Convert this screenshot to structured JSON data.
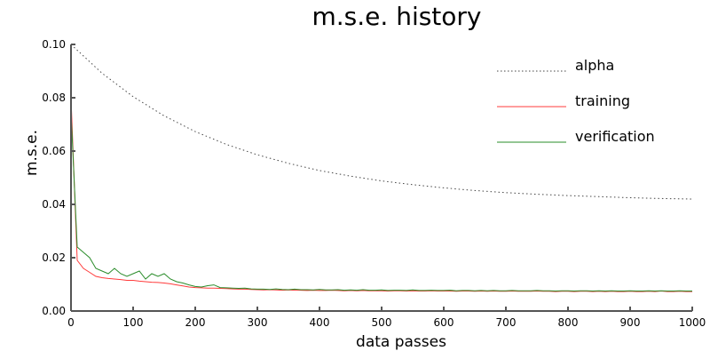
{
  "chart_data": {
    "type": "line",
    "title": "m.s.e. history",
    "xlabel": "data passes",
    "ylabel": "m.s.e.",
    "xlim": [
      0,
      1000
    ],
    "ylim": [
      0,
      0.1
    ],
    "xticks": [
      "0",
      "100",
      "200",
      "300",
      "400",
      "500",
      "600",
      "700",
      "800",
      "900",
      "1000"
    ],
    "yticks": [
      "0.00",
      "0.02",
      "0.04",
      "0.06",
      "0.08",
      "0.10"
    ],
    "grid": false,
    "legend_position": "top-right",
    "series": [
      {
        "name": "alpha",
        "color": "#444444",
        "style": "dotted",
        "x_step": 50,
        "values": [
          0.1,
          0.0892,
          0.0804,
          0.0732,
          0.0673,
          0.0625,
          0.0586,
          0.0554,
          0.0527,
          0.0506,
          0.0488,
          0.0474,
          0.0462,
          0.0452,
          0.0444,
          0.0438,
          0.0433,
          0.0429,
          0.0425,
          0.0422,
          0.042
        ]
      },
      {
        "name": "training",
        "color": "#ff3b3b",
        "style": "solid",
        "x_step": 10,
        "values": [
          0.08,
          0.019,
          0.016,
          0.0145,
          0.013,
          0.0125,
          0.0122,
          0.012,
          0.0118,
          0.0115,
          0.0115,
          0.0112,
          0.011,
          0.0108,
          0.0107,
          0.0105,
          0.0102,
          0.0098,
          0.0094,
          0.009,
          0.0088,
          0.0087,
          0.0086,
          0.0086,
          0.0085,
          0.0084,
          0.0083,
          0.0082,
          0.0082,
          0.0081,
          0.008,
          0.0079,
          0.008,
          0.0079,
          0.0078,
          0.0079,
          0.0078,
          0.0078,
          0.0077,
          0.0078,
          0.0077,
          0.0077,
          0.0078,
          0.0077,
          0.0076,
          0.0077,
          0.0076,
          0.0077,
          0.0076,
          0.0076,
          0.0076,
          0.0075,
          0.0076,
          0.0076,
          0.0075,
          0.0076,
          0.0075,
          0.0075,
          0.0076,
          0.0075,
          0.0075,
          0.0075,
          0.0074,
          0.0075,
          0.0075,
          0.0074,
          0.0075,
          0.0074,
          0.0075,
          0.0074,
          0.0074,
          0.0075,
          0.0074,
          0.0074,
          0.0074,
          0.0075,
          0.0074,
          0.0074,
          0.0073,
          0.0074,
          0.0074,
          0.0073,
          0.0074,
          0.0074,
          0.0073,
          0.0074,
          0.0073,
          0.0074,
          0.0073,
          0.0073,
          0.0074,
          0.0073,
          0.0073,
          0.0074,
          0.0073,
          0.0075,
          0.0073,
          0.0073,
          0.0074,
          0.0073,
          0.0073
        ]
      },
      {
        "name": "verification",
        "color": "#2a8c2a",
        "style": "solid",
        "x_step": 10,
        "values": [
          0.075,
          0.024,
          0.022,
          0.02,
          0.016,
          0.015,
          0.014,
          0.016,
          0.014,
          0.013,
          0.014,
          0.015,
          0.012,
          0.014,
          0.013,
          0.014,
          0.012,
          0.011,
          0.0105,
          0.0098,
          0.0092,
          0.009,
          0.0095,
          0.0098,
          0.0088,
          0.0087,
          0.0086,
          0.0085,
          0.0086,
          0.0083,
          0.0082,
          0.0082,
          0.0081,
          0.0083,
          0.0081,
          0.008,
          0.0082,
          0.008,
          0.008,
          0.0079,
          0.0081,
          0.0079,
          0.0079,
          0.008,
          0.0078,
          0.0079,
          0.0078,
          0.008,
          0.0078,
          0.0078,
          0.0079,
          0.0077,
          0.0078,
          0.0078,
          0.0077,
          0.0079,
          0.0077,
          0.0077,
          0.0078,
          0.0077,
          0.0077,
          0.0078,
          0.0076,
          0.0077,
          0.0077,
          0.0076,
          0.0077,
          0.0076,
          0.0077,
          0.0076,
          0.0076,
          0.0077,
          0.0076,
          0.0076,
          0.0076,
          0.0077,
          0.0076,
          0.0076,
          0.0075,
          0.0076,
          0.0076,
          0.0075,
          0.0076,
          0.0076,
          0.0075,
          0.0076,
          0.0075,
          0.0076,
          0.0075,
          0.0075,
          0.0076,
          0.0075,
          0.0075,
          0.0076,
          0.0075,
          0.0076,
          0.0075,
          0.0075,
          0.0076,
          0.0075,
          0.0075
        ]
      }
    ]
  }
}
